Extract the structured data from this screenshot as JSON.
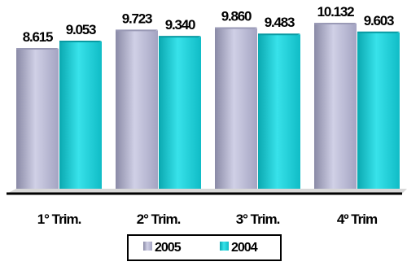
{
  "chart_data": {
    "type": "bar",
    "categories": [
      "1° Trim.",
      "2° Trim.",
      "3° Trim.",
      "4º Trim"
    ],
    "series": [
      {
        "name": "2005",
        "values": [
          8.615,
          9.723,
          9.86,
          10.132
        ],
        "labels": [
          "8.615",
          "9.723",
          "9.860",
          "10.132"
        ],
        "color": "#b8b8d4"
      },
      {
        "name": "2004",
        "values": [
          9.053,
          9.34,
          9.483,
          9.603
        ],
        "labels": [
          "9.053",
          "9.340",
          "9.483",
          "9.603"
        ],
        "color": "#1cd0d8"
      }
    ],
    "ylim": [
      0,
      11.5
    ],
    "grid": false,
    "legend_position": "bottom-center"
  }
}
